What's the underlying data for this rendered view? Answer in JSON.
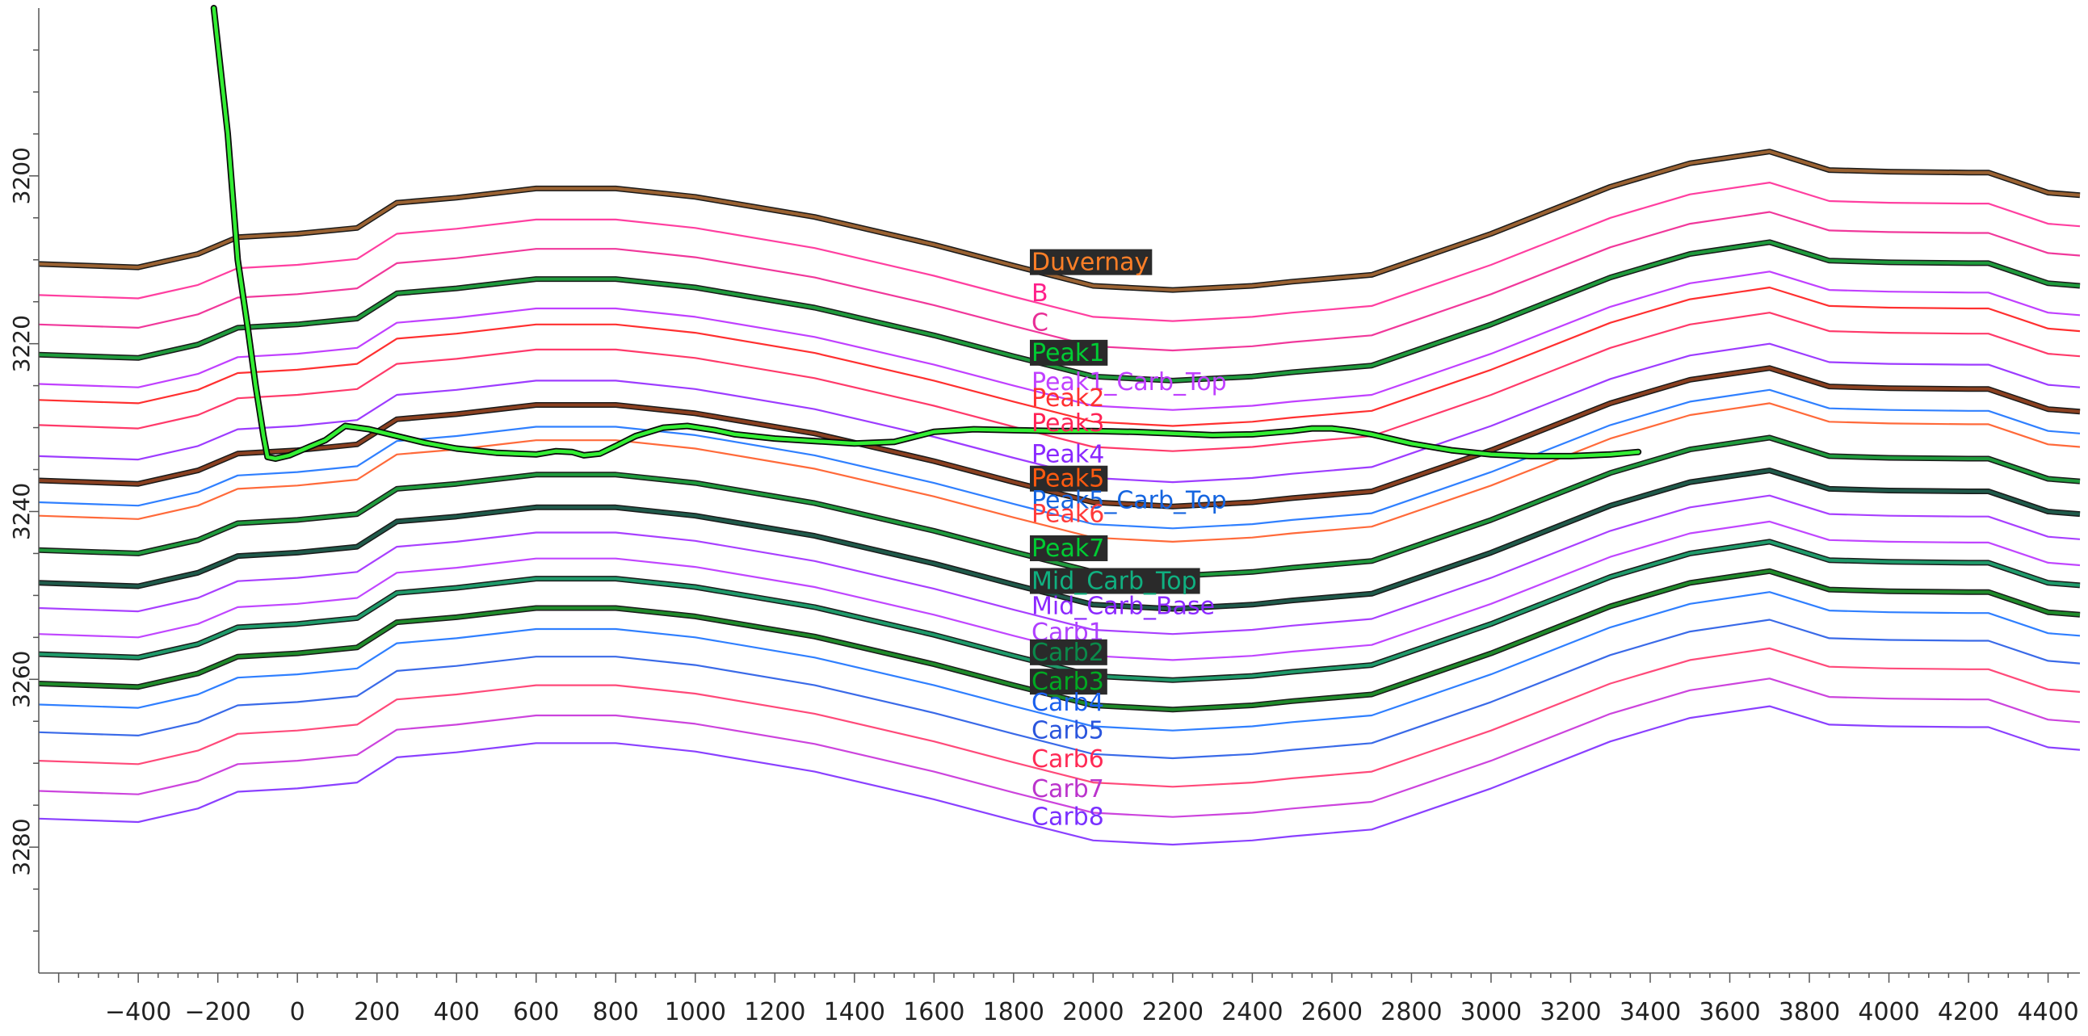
{
  "chart_data": {
    "type": "line",
    "title": "",
    "xlabel": "",
    "ylabel": "",
    "xlim": [
      -650,
      4480
    ],
    "ylim": [
      3295,
      3180
    ],
    "grid": false,
    "legend": "none",
    "x_ticks": [
      -400,
      -200,
      0,
      200,
      400,
      600,
      800,
      1000,
      1200,
      1400,
      1600,
      1800,
      2000,
      2200,
      2400,
      2600,
      2800,
      3000,
      3200,
      3400,
      3600,
      3800,
      4000,
      4200,
      4400
    ],
    "x_tick_labels": [
      "−400",
      "−200",
      "0",
      "200",
      "400",
      "600",
      "800",
      "1000",
      "1200",
      "1400",
      "1600",
      "1800",
      "2000",
      "2200",
      "2400",
      "2600",
      "2800",
      "3000",
      "3200",
      "3400",
      "3600",
      "3800",
      "4000",
      "4200",
      "4400"
    ],
    "y_ticks": [
      3200,
      3220,
      3240,
      3260,
      3280
    ],
    "y_tick_labels": [
      "3200",
      "3220",
      "3240",
      "3260",
      "3280"
    ],
    "base_x": [
      -650,
      -400,
      -250,
      -150,
      0,
      150,
      250,
      400,
      600,
      800,
      1000,
      1300,
      1600,
      1800,
      2000,
      2200,
      2400,
      2500,
      2700,
      3000,
      3300,
      3500,
      3700,
      3850,
      4000,
      4200,
      4250,
      4400,
      4480
    ],
    "base_profile": [
      0,
      0.4,
      -1.2,
      -3.2,
      -3.6,
      -4.3,
      -7.3,
      -7.9,
      -9.0,
      -9.0,
      -8.0,
      -5.6,
      -2.3,
      0.2,
      2.6,
      3.1,
      2.6,
      2.1,
      1.3,
      -3.6,
      -9.2,
      -12.0,
      -13.4,
      -11.2,
      -11.0,
      -10.9,
      -10.9,
      -8.5,
      -8.2
    ],
    "series": [
      {
        "name": "Duvernay",
        "color": "#9a6232",
        "label_color": "#ff7f27",
        "bold": true,
        "label_bg": true,
        "offset": 3210.5
      },
      {
        "name": "B",
        "color": "#ff3fa0",
        "label_color": "#ff1f8a",
        "bold": false,
        "label_bg": false,
        "offset": 3214.2
      },
      {
        "name": "C",
        "color": "#f0389b",
        "label_color": "#e82e96",
        "bold": false,
        "label_bg": false,
        "offset": 3217.7
      },
      {
        "name": "Peak1",
        "color": "#1f9a3c",
        "label_color": "#00cc33",
        "bold": true,
        "label_bg": true,
        "offset": 3221.3
      },
      {
        "name": "Peak1_Carb_Top",
        "color": "#c040ff",
        "label_color": "#c040ff",
        "bold": false,
        "label_bg": false,
        "offset": 3224.8
      },
      {
        "name": "Peak2",
        "color": "#ff3030",
        "label_color": "#ff3030",
        "bold": false,
        "label_bg": false,
        "offset": 3226.7
      },
      {
        "name": "Peak3",
        "color": "#ff3a6a",
        "label_color": "#ff2255",
        "bold": false,
        "label_bg": false,
        "offset": 3229.7
      },
      {
        "name": "Peak4",
        "color": "#9d3cff",
        "label_color": "#8a28ff",
        "bold": false,
        "label_bg": false,
        "offset": 3233.4
      },
      {
        "name": "Peak5",
        "color": "#8a4020",
        "label_color": "#ff5a10",
        "bold": true,
        "label_bg": true,
        "offset": 3236.3
      },
      {
        "name": "Peak5_Carb_Top",
        "color": "#3080ff",
        "label_color": "#1565e0",
        "bold": false,
        "label_bg": false,
        "offset": 3238.9
      },
      {
        "name": "Peak6",
        "color": "#ff6a3a",
        "label_color": "#ff3a3a",
        "bold": false,
        "label_bg": false,
        "offset": 3240.5
      },
      {
        "name": "Peak7",
        "color": "#1f9a3c",
        "label_color": "#00cc33",
        "bold": true,
        "label_bg": true,
        "offset": 3244.6
      },
      {
        "name": "Mid_Carb_Top",
        "color": "#1f5a4a",
        "label_color": "#10b080",
        "bold": true,
        "label_bg": true,
        "offset": 3248.5
      },
      {
        "name": "Mid_Carb_Base",
        "color": "#a840ff",
        "label_color": "#8c28ff",
        "bold": false,
        "label_bg": false,
        "offset": 3251.5
      },
      {
        "name": "Carb1",
        "color": "#c046ff",
        "label_color": "#b040ff",
        "bold": false,
        "label_bg": false,
        "offset": 3254.6
      },
      {
        "name": "Carb2",
        "color": "#1f9a6a",
        "label_color": "#0a8a4a",
        "bold": true,
        "label_bg": true,
        "offset": 3257.0
      },
      {
        "name": "Carb3",
        "color": "#1f8a2a",
        "label_color": "#00aa22",
        "bold": true,
        "label_bg": true,
        "offset": 3260.5
      },
      {
        "name": "Carb4",
        "color": "#2f7fff",
        "label_color": "#1a60ee",
        "bold": false,
        "label_bg": false,
        "offset": 3263.0
      },
      {
        "name": "Carb5",
        "color": "#3a6ae8",
        "label_color": "#2a55dd",
        "bold": false,
        "label_bg": false,
        "offset": 3266.3
      },
      {
        "name": "Carb6",
        "color": "#ff4a7a",
        "label_color": "#ff2a55",
        "bold": false,
        "label_bg": false,
        "offset": 3269.7
      },
      {
        "name": "Carb7",
        "color": "#cc44dd",
        "label_color": "#bb33cc",
        "bold": false,
        "label_bg": false,
        "offset": 3273.3
      },
      {
        "name": "Carb8",
        "color": "#8a40ff",
        "label_color": "#7a30ff",
        "bold": false,
        "label_bg": false,
        "offset": 3276.6
      }
    ],
    "well_path": {
      "color": "#33ee33",
      "x": [
        -210,
        -175,
        -150,
        -125,
        -105,
        -85,
        -75,
        -55,
        -20,
        20,
        70,
        120,
        180,
        250,
        320,
        400,
        500,
        600,
        650,
        690,
        720,
        760,
        800,
        850,
        920,
        980,
        1050,
        1100,
        1200,
        1300,
        1400,
        1500,
        1600,
        1700,
        1800,
        1900,
        2000,
        2100,
        2200,
        2300,
        2400,
        2500,
        2550,
        2600,
        2650,
        2700,
        2800,
        2900,
        3000,
        3100,
        3200,
        3300,
        3370
      ],
      "y": [
        3180,
        3195,
        3210,
        3218,
        3225,
        3231,
        3233.5,
        3233.7,
        3233.3,
        3232.5,
        3231.5,
        3229.8,
        3230.2,
        3231.0,
        3231.8,
        3232.5,
        3233.0,
        3233.2,
        3232.8,
        3232.9,
        3233.3,
        3233.1,
        3232.2,
        3231.0,
        3230.0,
        3229.8,
        3230.3,
        3230.8,
        3231.3,
        3231.6,
        3231.9,
        3231.7,
        3230.5,
        3230.2,
        3230.3,
        3230.4,
        3230.4,
        3230.5,
        3230.7,
        3230.9,
        3230.8,
        3230.4,
        3230.1,
        3230.1,
        3230.4,
        3230.8,
        3231.9,
        3232.7,
        3233.2,
        3233.4,
        3233.4,
        3233.2,
        3232.9
      ]
    },
    "label_x": 1845
  }
}
